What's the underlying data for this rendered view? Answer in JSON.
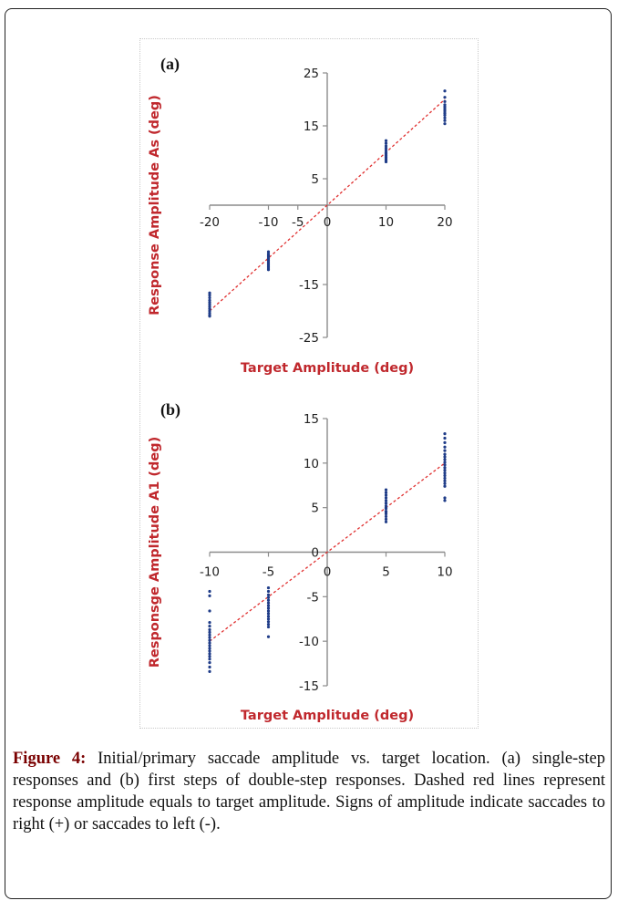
{
  "figure": {
    "caption_label": "Figure 4:",
    "caption_text": " Initial/primary saccade amplitude vs. target location. (a) single-step responses and (b) first steps of double-step responses. Dashed red lines represent response amplitude equals to target amplitude. Signs of amplitude indicate saccades to right (+) or saccades to left (-)."
  },
  "colors": {
    "points": "#1f3c88",
    "reference_line": "#e03030",
    "axis_title": "#c0282d",
    "axis": "#8c8c8c"
  },
  "chart_data": [
    {
      "type": "scatter",
      "panel_label": "(a)",
      "title": "",
      "xlabel": "Target Amplitude (deg)",
      "ylabel": "Response Amplitude As (deg)",
      "xlim": [
        -20,
        20
      ],
      "ylim": [
        -25,
        25
      ],
      "x_ticks": [
        -20,
        -10,
        -5,
        0,
        10,
        20
      ],
      "x_tick_labels": [
        "-20",
        "-10",
        "-5",
        "0",
        "10",
        "20"
      ],
      "y_ticks": [
        25,
        15,
        5,
        -15,
        -25
      ],
      "y_tick_labels": [
        "25",
        "15",
        "5",
        "-15",
        "-25"
      ],
      "grid": false,
      "legend": "none",
      "reference_line": {
        "style": "dashed",
        "from": [
          -20,
          -20
        ],
        "to": [
          20,
          20
        ]
      },
      "series": [
        {
          "x": [
            -20,
            -20,
            -20,
            -20,
            -20,
            -20,
            -20,
            -20,
            -20,
            -20,
            -20,
            -20
          ],
          "y": [
            -16.6,
            -17.0,
            -17.5,
            -18.0,
            -18.4,
            -18.8,
            -19.2,
            -19.6,
            -20.0,
            -20.4,
            -20.8,
            -21.0
          ]
        },
        {
          "x": [
            -10,
            -10,
            -10,
            -10,
            -10,
            -10,
            -10,
            -10,
            -10,
            -10,
            -10,
            -10
          ],
          "y": [
            -8.8,
            -9.2,
            -9.5,
            -9.8,
            -10.1,
            -10.4,
            -10.7,
            -11.0,
            -11.3,
            -11.6,
            -11.9,
            -12.2
          ]
        },
        {
          "x": [
            10,
            10,
            10,
            10,
            10,
            10,
            10,
            10,
            10,
            10,
            10,
            10
          ],
          "y": [
            12.2,
            11.7,
            11.2,
            10.8,
            10.4,
            10.0,
            9.7,
            9.4,
            9.1,
            8.8,
            8.5,
            8.2
          ]
        },
        {
          "x": [
            20,
            20,
            20,
            20,
            20,
            20,
            20,
            20,
            20,
            20,
            20,
            20
          ],
          "y": [
            21.6,
            20.4,
            19.6,
            19.0,
            18.6,
            18.2,
            17.8,
            17.4,
            17.0,
            16.5,
            16.0,
            15.4
          ]
        }
      ]
    },
    {
      "type": "scatter",
      "panel_label": "(b)",
      "title": "",
      "xlabel": "Target Amplitude (deg)",
      "ylabel": "Responsge Amplitude A1 (deg)",
      "xlim": [
        -10,
        10
      ],
      "ylim": [
        -15,
        15
      ],
      "x_ticks": [
        -10,
        -5,
        0,
        5,
        10
      ],
      "x_tick_labels": [
        "-10",
        "-5",
        "0",
        "5",
        "10"
      ],
      "y_ticks": [
        15,
        10,
        5,
        0,
        -5,
        -10,
        -15
      ],
      "y_tick_labels": [
        "15",
        "10",
        "5",
        "0",
        "-5",
        "-10",
        "-15"
      ],
      "grid": false,
      "legend": "none",
      "reference_line": {
        "style": "dashed",
        "from": [
          -10,
          -10
        ],
        "to": [
          10,
          10
        ]
      },
      "series": [
        {
          "x": [
            -10,
            -10,
            -10,
            -10,
            -10,
            -10,
            -10,
            -10,
            -10,
            -10,
            -10,
            -10,
            -10,
            -10,
            -10,
            -10,
            -10,
            -10,
            -10,
            -10
          ],
          "y": [
            -4.4,
            -4.9,
            -6.6,
            -7.9,
            -8.3,
            -8.7,
            -9.0,
            -9.3,
            -9.6,
            -9.9,
            -10.2,
            -10.5,
            -10.8,
            -11.1,
            -11.4,
            -11.7,
            -12.0,
            -12.4,
            -12.9,
            -13.4
          ]
        },
        {
          "x": [
            -5,
            -5,
            -5,
            -5,
            -5,
            -5,
            -5,
            -5,
            -5,
            -5,
            -5,
            -5,
            -5,
            -5,
            -5,
            -5
          ],
          "y": [
            -4.0,
            -4.4,
            -4.8,
            -5.1,
            -5.4,
            -5.7,
            -6.0,
            -6.3,
            -6.6,
            -6.9,
            -7.2,
            -7.5,
            -7.8,
            -8.1,
            -8.4,
            -9.5
          ]
        },
        {
          "x": [
            5,
            5,
            5,
            5,
            5,
            5,
            5,
            5,
            5,
            5,
            5,
            5,
            5,
            5,
            5,
            5
          ],
          "y": [
            7.0,
            6.7,
            6.4,
            6.1,
            5.8,
            5.5,
            5.2,
            4.9,
            4.6,
            4.3,
            4.0,
            3.7,
            3.4,
            5.0,
            4.5,
            5.5
          ]
        },
        {
          "x": [
            10,
            10,
            10,
            10,
            10,
            10,
            10,
            10,
            10,
            10,
            10,
            10,
            10,
            10,
            10,
            10,
            10,
            10,
            10,
            10
          ],
          "y": [
            13.3,
            12.8,
            12.3,
            11.8,
            11.4,
            11.0,
            10.7,
            10.4,
            10.1,
            9.8,
            9.5,
            9.2,
            8.9,
            8.6,
            8.3,
            8.0,
            7.7,
            7.4,
            6.1,
            5.8
          ]
        }
      ]
    }
  ]
}
